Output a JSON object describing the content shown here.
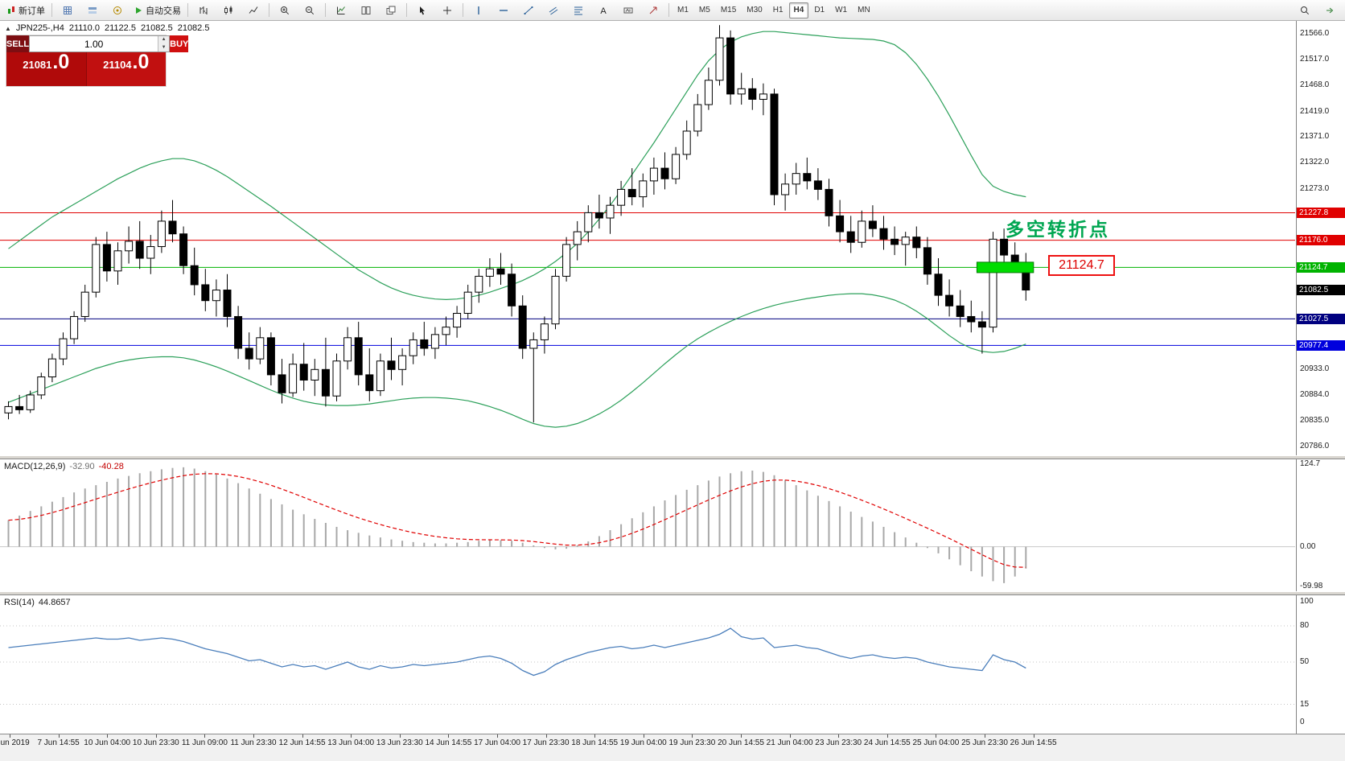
{
  "toolbar": {
    "buttons": [
      {
        "name": "new-order-button",
        "icon": "new-order",
        "label": "新订单"
      },
      {
        "name": "separator"
      },
      {
        "name": "market-watch-button",
        "icon": "grid"
      },
      {
        "name": "data-window-button",
        "icon": "layers"
      },
      {
        "name": "navigator-button",
        "icon": "compass"
      },
      {
        "name": "autotrading-button",
        "icon": "play",
        "label": "自动交易"
      },
      {
        "name": "separator"
      },
      {
        "name": "bar-chart-button",
        "icon": "bars"
      },
      {
        "name": "candle-chart-button",
        "icon": "candles"
      },
      {
        "name": "line-chart-button",
        "icon": "line"
      },
      {
        "name": "separator"
      },
      {
        "name": "zoom-in-button",
        "icon": "zoom-in"
      },
      {
        "name": "zoom-out-button",
        "icon": "zoom-out"
      },
      {
        "name": "separator"
      },
      {
        "name": "indicators-button",
        "icon": "indicators"
      },
      {
        "name": "tile-windows-button",
        "icon": "tile"
      },
      {
        "name": "cascade-windows-button",
        "icon": "cascade"
      },
      {
        "name": "separator"
      },
      {
        "name": "cursor-button",
        "icon": "cursor"
      },
      {
        "name": "crosshair-button",
        "icon": "crosshair"
      },
      {
        "name": "separator"
      },
      {
        "name": "vertical-line-button",
        "icon": "vline"
      },
      {
        "name": "horizontal-line-button",
        "icon": "hline"
      },
      {
        "name": "trendline-button",
        "icon": "trend"
      },
      {
        "name": "channel-button",
        "icon": "channel"
      },
      {
        "name": "fibonacci-button",
        "icon": "fibo"
      },
      {
        "name": "text-button",
        "icon": "text"
      },
      {
        "name": "label-button",
        "icon": "label"
      },
      {
        "name": "arrows-button",
        "icon": "arrow-obj"
      },
      {
        "name": "separator"
      }
    ],
    "timeframes": [
      "M1",
      "M5",
      "M15",
      "M30",
      "H1",
      "H4",
      "D1",
      "W1",
      "MN"
    ],
    "active_timeframe": "H4",
    "right_buttons": [
      {
        "name": "search-button",
        "icon": "search"
      },
      {
        "name": "chart-shift-button",
        "icon": "chart-shift"
      }
    ]
  },
  "info_bar": {
    "collapse_icon": "▲",
    "symbol": "JPN225-,H4",
    "open": "21110.0",
    "high": "21122.5",
    "low": "21082.5",
    "close": "21082.5"
  },
  "trade_panel": {
    "sell_label": "SELL",
    "buy_label": "BUY",
    "volume": "1.00",
    "sell_price": "21081",
    "sell_price_frac": ".0",
    "buy_price": "21104",
    "buy_price_frac": ".0"
  },
  "annotation": {
    "text": "多空转折点",
    "price_tag": "21124.7"
  },
  "chart_data": {
    "type": "candlestick",
    "symbol": "JPN225-",
    "timeframe": "H4",
    "price_min": 20770,
    "price_max": 21590,
    "price_axis_labels": [
      21566.0,
      21517.0,
      21468.0,
      21419.0,
      21371.0,
      21322.0,
      21273.0,
      20933.0,
      20884.0,
      20835.0,
      20786.0
    ],
    "hlines": [
      {
        "price": 21227.8,
        "color": "#e00000"
      },
      {
        "price": 21176.0,
        "color": "#e00000"
      },
      {
        "price": 21124.7,
        "color": "#00b300"
      },
      {
        "price": 21027.5,
        "color": "#000080"
      },
      {
        "price": 20977.4,
        "color": "#0000dd"
      }
    ],
    "current_price": 21082.5,
    "highlight_box": {
      "from": 90,
      "to": 94,
      "price": 21124.7,
      "fill": "#00dc00",
      "stroke": "#067a06"
    },
    "bollinger": {
      "color": "#2ca05a",
      "upper": [
        21160,
        21175,
        21190,
        21205,
        21220,
        21232,
        21244,
        21256,
        21268,
        21280,
        21292,
        21302,
        21312,
        21320,
        21326,
        21330,
        21330,
        21326,
        21318,
        21308,
        21296,
        21282,
        21268,
        21254,
        21240,
        21225,
        21210,
        21195,
        21180,
        21165,
        21150,
        21135,
        21120,
        21108,
        21096,
        21086,
        21078,
        21072,
        21068,
        21065,
        21064,
        21065,
        21068,
        21072,
        21078,
        21085,
        21092,
        21100,
        21110,
        21122,
        21136,
        21152,
        21170,
        21192,
        21216,
        21242,
        21270,
        21300,
        21330,
        21360,
        21392,
        21424,
        21456,
        21488,
        21515,
        21535,
        21550,
        21560,
        21566,
        21570,
        21570,
        21568,
        21566,
        21564,
        21562,
        21560,
        21558,
        21557,
        21556,
        21555,
        21552,
        21545,
        21530,
        21508,
        21480,
        21448,
        21412,
        21374,
        21336,
        21300,
        21278,
        21268,
        21262,
        21258
      ],
      "lower": [
        20870,
        20878,
        20886,
        20894,
        20902,
        20910,
        20918,
        20926,
        20934,
        20940,
        20946,
        20950,
        20953,
        20955,
        20956,
        20956,
        20954,
        20950,
        20944,
        20937,
        20929,
        20920,
        20911,
        20902,
        20893,
        20885,
        20878,
        20872,
        20868,
        20865,
        20864,
        20864,
        20865,
        20867,
        20870,
        20873,
        20876,
        20878,
        20879,
        20879,
        20878,
        20876,
        20873,
        20868,
        20862,
        20855,
        20847,
        20838,
        20830,
        20825,
        20823,
        20825,
        20830,
        20838,
        20848,
        20860,
        20874,
        20890,
        20907,
        20925,
        20943,
        20960,
        20976,
        20990,
        21002,
        21013,
        21023,
        21032,
        21040,
        21047,
        21053,
        21058,
        21062,
        21066,
        21069,
        21072,
        21074,
        21075,
        21075,
        21073,
        21069,
        21063,
        21054,
        21042,
        21028,
        21012,
        20996,
        20982,
        20972,
        20966,
        20964,
        20966,
        20972,
        20980
      ]
    },
    "candles": [
      [
        20850,
        20872,
        20838,
        20862
      ],
      [
        20862,
        20884,
        20848,
        20856
      ],
      [
        20856,
        20892,
        20850,
        20884
      ],
      [
        20884,
        20926,
        20876,
        20918
      ],
      [
        20918,
        20962,
        20908,
        20952
      ],
      [
        20952,
        21002,
        20940,
        20990
      ],
      [
        20990,
        21042,
        20980,
        21032
      ],
      [
        21032,
        21092,
        21022,
        21078
      ],
      [
        21078,
        21182,
        21068,
        21168
      ],
      [
        21168,
        21192,
        21098,
        21118
      ],
      [
        21118,
        21172,
        21092,
        21156
      ],
      [
        21156,
        21202,
        21132,
        21174
      ],
      [
        21174,
        21212,
        21122,
        21142
      ],
      [
        21142,
        21186,
        21112,
        21164
      ],
      [
        21164,
        21232,
        21152,
        21212
      ],
      [
        21212,
        21252,
        21172,
        21188
      ],
      [
        21188,
        21202,
        21112,
        21128
      ],
      [
        21128,
        21162,
        21072,
        21092
      ],
      [
        21092,
        21122,
        21042,
        21062
      ],
      [
        21062,
        21102,
        21032,
        21082
      ],
      [
        21082,
        21112,
        21012,
        21032
      ],
      [
        21032,
        21052,
        20952,
        20972
      ],
      [
        20972,
        21002,
        20932,
        20952
      ],
      [
        20952,
        21012,
        20942,
        20992
      ],
      [
        20992,
        21002,
        20902,
        20922
      ],
      [
        20922,
        20952,
        20868,
        20888
      ],
      [
        20888,
        20962,
        20880,
        20942
      ],
      [
        20942,
        20982,
        20892,
        20912
      ],
      [
        20912,
        20952,
        20882,
        20932
      ],
      [
        20932,
        20992,
        20862,
        20882
      ],
      [
        20882,
        20962,
        20872,
        20948
      ],
      [
        20948,
        21012,
        20932,
        20992
      ],
      [
        20992,
        21022,
        20902,
        20922
      ],
      [
        20922,
        20972,
        20872,
        20892
      ],
      [
        20892,
        20962,
        20882,
        20948
      ],
      [
        20948,
        20992,
        20912,
        20932
      ],
      [
        20932,
        20972,
        20902,
        20958
      ],
      [
        20958,
        21002,
        20942,
        20988
      ],
      [
        20988,
        21022,
        20958,
        20972
      ],
      [
        20972,
        21012,
        20952,
        20998
      ],
      [
        20998,
        21032,
        20978,
        21012
      ],
      [
        21012,
        21052,
        20992,
        21038
      ],
      [
        21038,
        21092,
        21028,
        21078
      ],
      [
        21078,
        21122,
        21058,
        21108
      ],
      [
        21108,
        21142,
        21088,
        21122
      ],
      [
        21122,
        21152,
        21092,
        21112
      ],
      [
        21112,
        21132,
        21032,
        21052
      ],
      [
        21052,
        21072,
        20952,
        20972
      ],
      [
        20972,
        21002,
        20832,
        20988
      ],
      [
        20988,
        21032,
        20962,
        21018
      ],
      [
        21018,
        21122,
        21008,
        21108
      ],
      [
        21108,
        21182,
        21098,
        21168
      ],
      [
        21168,
        21212,
        21138,
        21192
      ],
      [
        21192,
        21242,
        21172,
        21228
      ],
      [
        21228,
        21262,
        21198,
        21218
      ],
      [
        21218,
        21258,
        21188,
        21242
      ],
      [
        21242,
        21288,
        21222,
        21272
      ],
      [
        21272,
        21312,
        21242,
        21258
      ],
      [
        21258,
        21302,
        21238,
        21288
      ],
      [
        21288,
        21332,
        21262,
        21312
      ],
      [
        21312,
        21342,
        21272,
        21292
      ],
      [
        21292,
        21352,
        21282,
        21338
      ],
      [
        21338,
        21402,
        21328,
        21382
      ],
      [
        21382,
        21452,
        21372,
        21432
      ],
      [
        21432,
        21502,
        21422,
        21478
      ],
      [
        21478,
        21582,
        21468,
        21558
      ],
      [
        21558,
        21572,
        21432,
        21452
      ],
      [
        21452,
        21492,
        21432,
        21462
      ],
      [
        21462,
        21482,
        21422,
        21442
      ],
      [
        21442,
        21472,
        21412,
        21452
      ],
      [
        21452,
        21462,
        21242,
        21262
      ],
      [
        21262,
        21302,
        21232,
        21282
      ],
      [
        21282,
        21322,
        21262,
        21302
      ],
      [
        21302,
        21332,
        21272,
        21288
      ],
      [
        21288,
        21312,
        21252,
        21272
      ],
      [
        21272,
        21292,
        21202,
        21222
      ],
      [
        21222,
        21252,
        21172,
        21192
      ],
      [
        21192,
        21222,
        21152,
        21172
      ],
      [
        21172,
        21232,
        21162,
        21212
      ],
      [
        21212,
        21242,
        21182,
        21198
      ],
      [
        21198,
        21222,
        21158,
        21178
      ],
      [
        21178,
        21202,
        21148,
        21168
      ],
      [
        21168,
        21192,
        21128,
        21182
      ],
      [
        21182,
        21202,
        21142,
        21162
      ],
      [
        21162,
        21182,
        21092,
        21112
      ],
      [
        21112,
        21142,
        21052,
        21072
      ],
      [
        21072,
        21102,
        21032,
        21052
      ],
      [
        21052,
        21082,
        21012,
        21032
      ],
      [
        21032,
        21062,
        21002,
        21022
      ],
      [
        21022,
        21042,
        20962,
        21012
      ],
      [
        21012,
        21192,
        21002,
        21178
      ],
      [
        21178,
        21198,
        21128,
        21148
      ],
      [
        21148,
        21172,
        21118,
        21132
      ],
      [
        21132,
        21152,
        21062,
        21082
      ]
    ],
    "time_labels": [
      "5 Jun 2019",
      "7 Jun 14:55",
      "10 Jun 04:00",
      "10 Jun 23:30",
      "11 Jun 09:00",
      "11 Jun 23:30",
      "12 Jun 14:55",
      "13 Jun 04:00",
      "13 Jun 23:30",
      "14 Jun 14:55",
      "17 Jun 04:00",
      "17 Jun 23:30",
      "18 Jun 14:55",
      "19 Jun 04:00",
      "19 Jun 23:30",
      "20 Jun 14:55",
      "21 Jun 04:00",
      "23 Jun 23:30",
      "24 Jun 14:55",
      "25 Jun 04:00",
      "25 Jun 23:30",
      "26 Jun 14:55"
    ],
    "macd": {
      "label": "MACD(12,26,9)",
      "value_main": "-32.90",
      "value_signal": "-40.28",
      "axis": [
        {
          "v": 124.7,
          "t": "124.7"
        },
        {
          "v": 0,
          "t": "0.00"
        },
        {
          "v": -59.98,
          "t": "-59.98"
        }
      ],
      "hist_color": "#a8a8a8",
      "signal_color": "#e00000",
      "hist": [
        40,
        47,
        54,
        61,
        68,
        75,
        82,
        88,
        93,
        98,
        103,
        107,
        111,
        114,
        117,
        119,
        120,
        118,
        114,
        109,
        103,
        96,
        88,
        80,
        72,
        64,
        56,
        49,
        42,
        36,
        30,
        25,
        21,
        17,
        14,
        11,
        9,
        7,
        6,
        5,
        5,
        6,
        7,
        9,
        10,
        10,
        9,
        6,
        2,
        -2,
        -4,
        -3,
        2,
        8,
        16,
        25,
        34,
        43,
        52,
        61,
        70,
        78,
        86,
        93,
        100,
        106,
        111,
        114,
        115,
        113,
        108,
        101,
        93,
        85,
        77,
        69,
        61,
        53,
        45,
        38,
        30,
        22,
        14,
        6,
        -2,
        -10,
        -19,
        -28,
        -37,
        -45,
        -52,
        -55,
        -45,
        -33
      ]
    },
    "rsi": {
      "label": "RSI(14)",
      "value": "44.8657",
      "levels": [
        100,
        80,
        50,
        15,
        0
      ],
      "color": "#4a7ebb",
      "range": [
        0,
        100
      ],
      "values": [
        62,
        63,
        64,
        65,
        66,
        67,
        68,
        69,
        70,
        69,
        69,
        70,
        68,
        69,
        70,
        69,
        67,
        64,
        61,
        59,
        57,
        54,
        51,
        52,
        49,
        46,
        48,
        46,
        47,
        44,
        47,
        50,
        46,
        44,
        47,
        45,
        46,
        48,
        47,
        48,
        49,
        50,
        52,
        54,
        55,
        53,
        49,
        43,
        39,
        42,
        48,
        52,
        55,
        58,
        60,
        62,
        63,
        61,
        62,
        64,
        62,
        64,
        66,
        68,
        70,
        73,
        78,
        71,
        69,
        70,
        62,
        63,
        64,
        62,
        61,
        58,
        55,
        53,
        55,
        56,
        54,
        53,
        54,
        53,
        50,
        48,
        46,
        45,
        44,
        43,
        56,
        52,
        50,
        45
      ]
    }
  }
}
